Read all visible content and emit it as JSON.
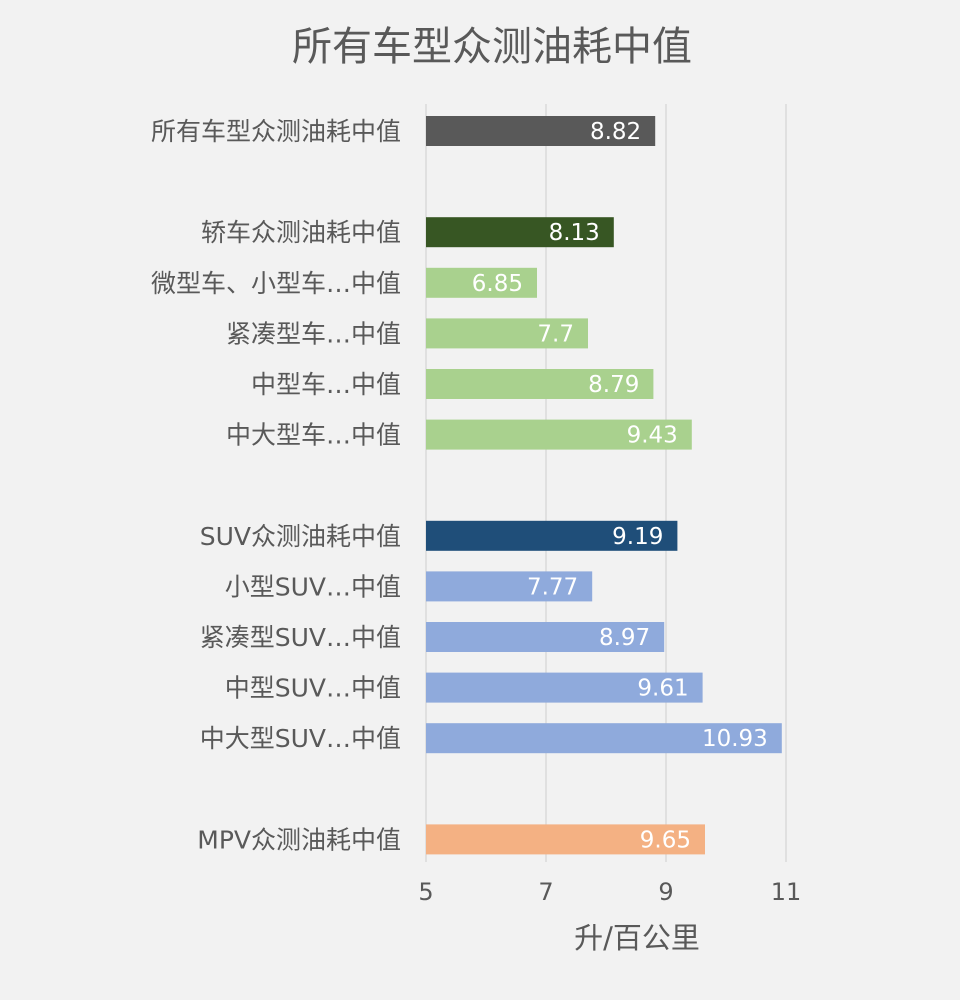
{
  "chart_data": {
    "type": "bar",
    "orientation": "horizontal",
    "title": "所有车型众测油耗中值",
    "xlabel": "升/百公里",
    "xlim": [
      5,
      11.8
    ],
    "xticks": [
      5,
      7,
      9,
      11
    ],
    "grid": true,
    "legend": "none",
    "categories": [
      "所有车型众测油耗中值",
      "",
      "轿车众测油耗中值",
      "微型车、小型车…中值",
      "紧凑型车…中值",
      "中型车…中值",
      "中大型车…中值",
      "",
      "SUV众测油耗中值",
      "小型SUV…中值",
      "紧凑型SUV…中值",
      "中型SUV…中值",
      "中大型SUV…中值",
      "",
      "MPV众测油耗中值"
    ],
    "values": [
      8.82,
      null,
      8.13,
      6.85,
      7.7,
      8.79,
      9.43,
      null,
      9.19,
      7.77,
      8.97,
      9.61,
      10.93,
      null,
      9.65
    ],
    "value_labels": [
      "8.82",
      "",
      "8.13",
      "6.85",
      "7.7",
      "8.79",
      "9.43",
      "",
      "9.19",
      "7.77",
      "8.97",
      "9.61",
      "10.93",
      "",
      "9.65"
    ],
    "colors": [
      "#595959",
      null,
      "#375623",
      "#a9d18e",
      "#a9d18e",
      "#a9d18e",
      "#a9d18e",
      null,
      "#1f4e79",
      "#8faadc",
      "#8faadc",
      "#8faadc",
      "#8faadc",
      null,
      "#f4b183"
    ]
  }
}
